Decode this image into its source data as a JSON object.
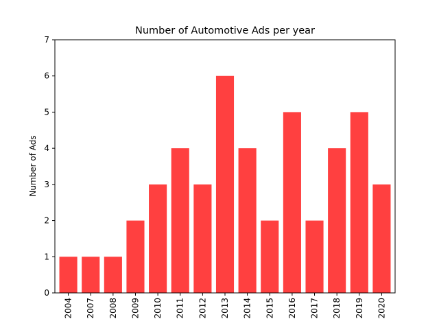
{
  "chart_data": {
    "type": "bar",
    "title": "Number of Automotive Ads per year",
    "xlabel": "",
    "ylabel": "Number of Ads",
    "categories": [
      "2004",
      "2007",
      "2008",
      "2009",
      "2010",
      "2011",
      "2012",
      "2013",
      "2014",
      "2015",
      "2016",
      "2017",
      "2018",
      "2019",
      "2020"
    ],
    "values": [
      1,
      1,
      1,
      2,
      3,
      4,
      3,
      6,
      4,
      2,
      5,
      2,
      4,
      5,
      3
    ],
    "ylim": [
      0,
      7
    ],
    "yticks": [
      "0",
      "1",
      "2",
      "3",
      "4",
      "5",
      "6",
      "7"
    ],
    "grid": false,
    "bar_color": "#ff4040"
  }
}
